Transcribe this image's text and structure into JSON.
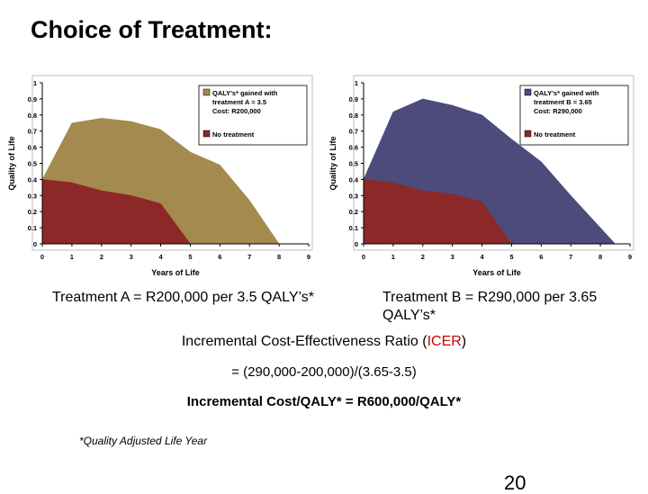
{
  "slide": {
    "title": "Choice of Treatment:",
    "caption_a": "Treatment A = R200,000 per 3.5 QALY’s*",
    "caption_b": "Treatment B = R290,000 per 3.65 QALY’s*",
    "icer_prefix": "Incremental Cost-Effectiveness Ratio (",
    "icer_abbr": "ICER",
    "icer_suffix": ")",
    "formula": "= (290,000-200,000)/(3.65-3.5)",
    "result": "Incremental Cost/QALY* = R600,000/QALY*",
    "footnote": "*Quality Adjusted Life Year",
    "page_number": "20"
  },
  "colors": {
    "treatment_a": "#a48a4e",
    "treatment_b": "#4c4b7b",
    "no_treatment": "#8d2828",
    "icer_highlight": "#cc0000"
  },
  "chart_data": [
    {
      "type": "area",
      "xlabel": "Years of Life",
      "ylabel": "Quality of Life",
      "xlim": [
        0,
        9
      ],
      "ylim": [
        0,
        1
      ],
      "x_ticks": [
        "0",
        "1",
        "2",
        "3",
        "4",
        "5",
        "6",
        "7",
        "8",
        "9"
      ],
      "y_ticks": [
        "0",
        "0.1",
        "0.2",
        "0.3",
        "0.4",
        "0.5",
        "0.6",
        "0.7",
        "0.8",
        "0.9",
        "1"
      ],
      "legend_position": "top-right",
      "series": [
        {
          "name": "QALY's* gained with treatment A = 3.5 Cost: R200,000",
          "legend_lines": [
            "QALY's* gained with",
            "treatment A = 3.5",
            "Cost: R200,000"
          ],
          "color": "#a48a4e",
          "points": [
            [
              0,
              0.4
            ],
            [
              1,
              0.75
            ],
            [
              2,
              0.78
            ],
            [
              3,
              0.76
            ],
            [
              4,
              0.71
            ],
            [
              5,
              0.57
            ],
            [
              6,
              0.49
            ],
            [
              7,
              0.27
            ],
            [
              8,
              0
            ]
          ]
        },
        {
          "name": "No treatment",
          "legend_lines": [
            "No treatment"
          ],
          "color": "#8d2828",
          "points": [
            [
              0,
              0.4
            ],
            [
              1,
              0.38
            ],
            [
              2,
              0.33
            ],
            [
              3,
              0.3
            ],
            [
              4,
              0.25
            ],
            [
              5,
              0
            ]
          ]
        }
      ]
    },
    {
      "type": "area",
      "xlabel": "Years of Life",
      "ylabel": "Quality of Life",
      "xlim": [
        0,
        9
      ],
      "ylim": [
        0,
        1
      ],
      "x_ticks": [
        "0",
        "1",
        "2",
        "3",
        "4",
        "5",
        "6",
        "7",
        "8",
        "9"
      ],
      "y_ticks": [
        "0",
        "0.1",
        "0.2",
        "0.3",
        "0.4",
        "0.5",
        "0.6",
        "0.7",
        "0.8",
        "0.9",
        "1"
      ],
      "legend_position": "top-right",
      "series": [
        {
          "name": "QALY's* gained with treatment B = 3.65 Cost: R290,000",
          "legend_lines": [
            "QALY's* gained with",
            "treatment B = 3.65",
            "Cost: R290,000"
          ],
          "color": "#4c4b7b",
          "points": [
            [
              0,
              0.4
            ],
            [
              1,
              0.82
            ],
            [
              2,
              0.9
            ],
            [
              3,
              0.86
            ],
            [
              4,
              0.8
            ],
            [
              5,
              0.65
            ],
            [
              6,
              0.51
            ],
            [
              7,
              0.3
            ],
            [
              8,
              0.1
            ],
            [
              8.5,
              0
            ]
          ]
        },
        {
          "name": "No treatment",
          "legend_lines": [
            "No treatment"
          ],
          "color": "#8d2828",
          "points": [
            [
              0,
              0.4
            ],
            [
              1,
              0.38
            ],
            [
              2,
              0.33
            ],
            [
              3,
              0.31
            ],
            [
              4,
              0.26
            ],
            [
              5,
              0
            ]
          ]
        }
      ]
    }
  ]
}
